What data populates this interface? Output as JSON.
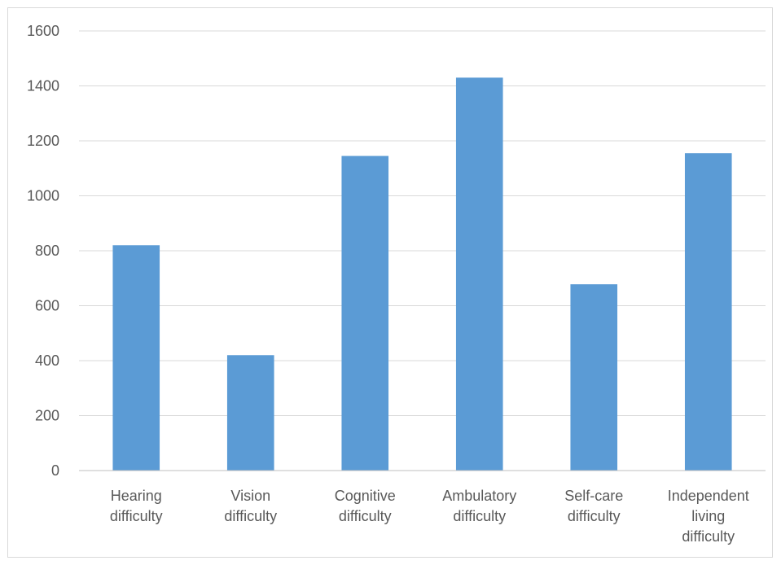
{
  "chart_data": {
    "type": "bar",
    "categories": [
      [
        "Hearing",
        "difficulty"
      ],
      [
        "Vision",
        "difficulty"
      ],
      [
        "Cognitive",
        "difficulty"
      ],
      [
        "Ambulatory",
        "difficulty"
      ],
      [
        "Self-care",
        "difficulty"
      ],
      [
        "Independent",
        "living",
        "difficulty"
      ]
    ],
    "values": [
      820,
      420,
      1145,
      1430,
      678,
      1155
    ],
    "ylim": [
      0,
      1600
    ],
    "yticks": [
      "0",
      "200",
      "400",
      "600",
      "800",
      "1000",
      "1200",
      "1400",
      "1600"
    ],
    "grid": true,
    "legend": "none",
    "bar_color": "#5b9bd5",
    "grid_color": "#d9d9d9"
  }
}
